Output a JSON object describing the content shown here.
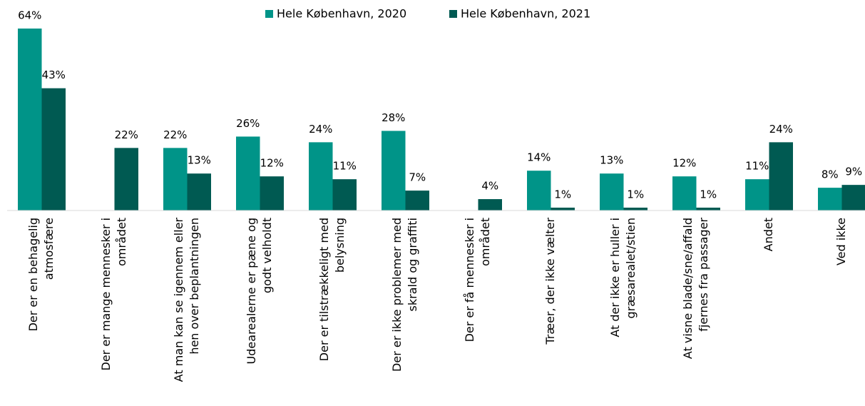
{
  "chart_data": {
    "type": "bar",
    "categories": [
      [
        "Der er en behagelig",
        "atmosfære"
      ],
      [
        "Der er mange mennesker i",
        "området"
      ],
      [
        "At man kan se igennem eller",
        "hen over beplantningen"
      ],
      [
        "Udearealerne er pæne og",
        "godt velholdt"
      ],
      [
        "Der er tilstrækkeligt med",
        "belysning"
      ],
      [
        "Der er ikke problemer med",
        "skrald og graffiti"
      ],
      [
        "Der er få mennesker i",
        "området"
      ],
      [
        "Træer, der ikke vælter"
      ],
      [
        "At der ikke er huller i",
        "græsarealet/stien"
      ],
      [
        "At visne blade/sne/affald",
        "fjernes fra passager"
      ],
      [
        "Andet"
      ],
      [
        "Ved ikke"
      ]
    ],
    "series": [
      {
        "name": "Hele København, 2020",
        "color": "#009488",
        "values": [
          64,
          null,
          22,
          26,
          24,
          28,
          null,
          14,
          13,
          12,
          11,
          8
        ],
        "value_labels": [
          "64%",
          null,
          "22%",
          "26%",
          "24%",
          "28%",
          null,
          "14%",
          "13%",
          "12%",
          "11%",
          "8%"
        ]
      },
      {
        "name": "Hele København, 2021",
        "color": "#005a52",
        "values": [
          43,
          22,
          13,
          12,
          11,
          7,
          4,
          1,
          1,
          1,
          24,
          9
        ],
        "value_labels": [
          "43%",
          "22%",
          "13%",
          "12%",
          "11%",
          "7%",
          "4%",
          "1%",
          "1%",
          "1%",
          "24%",
          "9%"
        ]
      }
    ],
    "ylim": [
      0,
      64
    ],
    "legend": "top"
  }
}
